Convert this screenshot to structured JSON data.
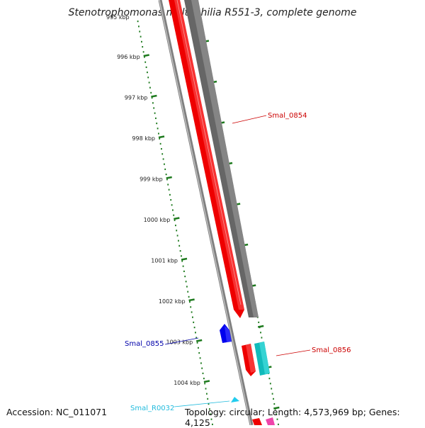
{
  "title": "Stenotrophomonas maltophilia R551-3, complete genome",
  "footer": {
    "accession": "Accession: NC_011071",
    "summary": "Topology: circular; Length: 4,573,969 bp; Genes: 4,125"
  },
  "ruler": {
    "partial_top_label": "995 kbp",
    "ticks": [
      "996 kbp",
      "997 kbp",
      "998 kbp",
      "999 kbp",
      "1000 kbp",
      "1001 kbp",
      "1002 kbp",
      "1003 kbp",
      "1004 kbp"
    ]
  },
  "colors": {
    "ruler": "#1e7a1e",
    "backbone": "#8c8c8c",
    "forward_cds": "#ff0000",
    "reverse_cds": "#6e6e6e",
    "blue_gene": "#0000ee",
    "rrna": "#22cccc",
    "pink": "#ee44aa"
  },
  "genes": [
    {
      "name": "Smal_0854",
      "color": "#cc0000"
    },
    {
      "name": "Smal_0855",
      "color": "#0000aa"
    },
    {
      "name": "Smal_0856",
      "color": "#cc0000"
    },
    {
      "name": "Smal_R0032",
      "color": "#22bbdd"
    }
  ]
}
